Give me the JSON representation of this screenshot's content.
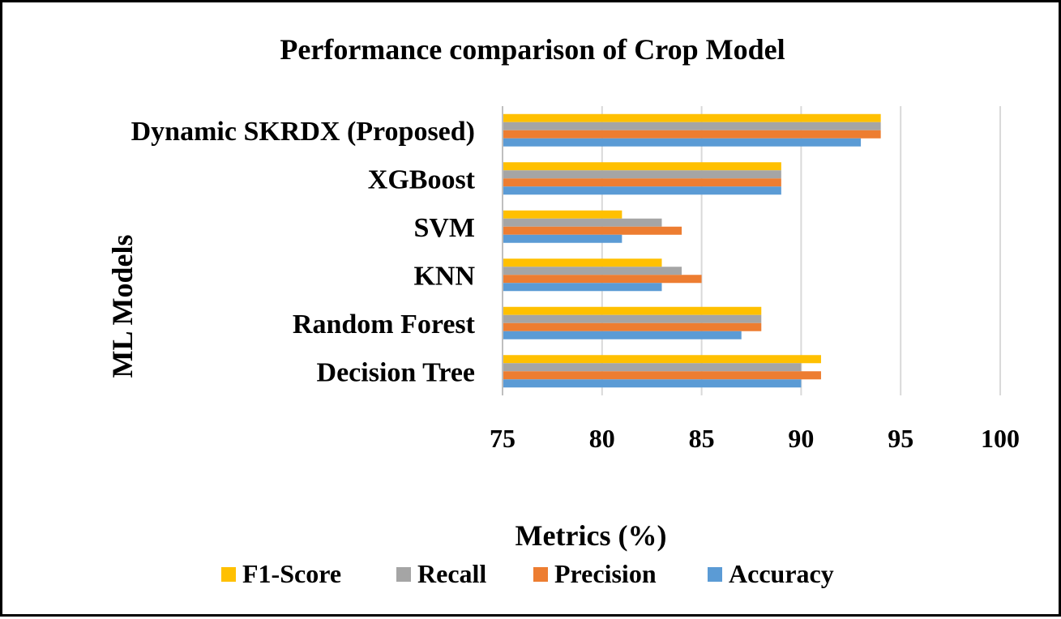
{
  "chart_data": {
    "type": "bar",
    "orientation": "horizontal",
    "title": "Performance comparison of Crop Model",
    "xlabel": "Metrics (%)",
    "ylabel": "ML Models",
    "xlim": [
      75,
      100
    ],
    "xticks": [
      "75",
      "80",
      "85",
      "90",
      "95",
      "100"
    ],
    "tick_values": [
      75,
      80,
      85,
      90,
      95,
      100
    ],
    "grid": true,
    "legend_position": "bottom",
    "categories": [
      "Dynamic SKRDX (Proposed)",
      "XGBoost",
      "SVM",
      "KNN",
      "Random Forest",
      "Decision Tree"
    ],
    "series": [
      {
        "name": "F1-Score",
        "color": "#ffc000",
        "values": [
          94,
          89,
          81,
          83,
          88,
          91
        ]
      },
      {
        "name": "Recall",
        "color": "#a5a5a5",
        "values": [
          94,
          89,
          83,
          84,
          88,
          90
        ]
      },
      {
        "name": "Precision",
        "color": "#ed7d31",
        "values": [
          94,
          89,
          84,
          85,
          88,
          91
        ]
      },
      {
        "name": "Accuracy",
        "color": "#5b9bd5",
        "values": [
          93,
          89,
          81,
          83,
          87,
          90
        ]
      }
    ],
    "legend_order": [
      "F1-Score",
      "Recall",
      "Precision",
      "Accuracy"
    ]
  }
}
